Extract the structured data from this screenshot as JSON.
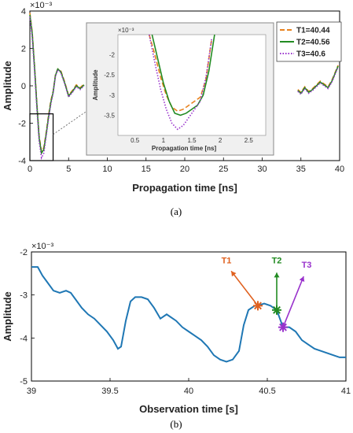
{
  "chart_data": [
    {
      "type": "line",
      "panel": "(a)",
      "caption": "(a)",
      "xlabel": "Propagation time [ns]",
      "ylabel": "Amplitude",
      "exponent_label": "×10⁻³",
      "xlim": [
        0,
        40
      ],
      "ylim": [
        -4,
        4
      ],
      "xticks": [
        "0",
        "5",
        "10",
        "15",
        "20",
        "25",
        "30",
        "35",
        "40"
      ],
      "yticks": [
        "-4",
        "-2",
        "0",
        "2",
        "4"
      ],
      "legend_position": "top-right",
      "colors": {
        "T1": "#e8821e",
        "T2": "#228b22",
        "T3": "#9932cc",
        "base": "#555555",
        "zoom_box": "#000000"
      },
      "series": [
        {
          "name": "T1=40.44",
          "style": "dashed",
          "x": [
            0,
            0.3,
            0.6,
            0.9,
            1.2,
            1.5,
            1.8,
            2.1,
            2.4,
            2.7,
            3.0,
            3.3,
            3.6,
            4.0,
            4.5,
            5.0,
            5.5,
            6.0,
            6.5,
            7.0,
            34.6,
            35.0,
            35.5,
            36.0,
            36.5,
            37.0,
            37.5,
            38.0,
            38.5,
            39.0,
            39.4,
            39.8
          ],
          "y": [
            3.9,
            2.9,
            1.1,
            -0.9,
            -2.7,
            -3.5,
            -3.3,
            -2.5,
            -1.6,
            -0.8,
            -0.3,
            0.6,
            0.9,
            0.8,
            0.2,
            -0.5,
            -0.25,
            0.05,
            -0.1,
            0.1,
            -0.2,
            -0.35,
            -0.05,
            -0.3,
            -0.15,
            0.05,
            0.25,
            0.1,
            -0.05,
            0.3,
            0.7,
            1.1
          ]
        },
        {
          "name": "T2=40.56",
          "style": "solid",
          "x": [
            0,
            0.3,
            0.6,
            0.9,
            1.2,
            1.5,
            1.8,
            2.1,
            2.4,
            2.7,
            3.0,
            3.3,
            3.6,
            4.0,
            4.5,
            5.0,
            5.5,
            6.0,
            6.5,
            7.0,
            34.6,
            35.0,
            35.5,
            36.0,
            36.5,
            37.0,
            37.5,
            38.0,
            38.5,
            39.0,
            39.4,
            39.8
          ],
          "y": [
            3.8,
            2.8,
            1.0,
            -1.0,
            -2.8,
            -3.6,
            -3.4,
            -2.6,
            -1.7,
            -0.9,
            -0.35,
            0.55,
            0.9,
            0.75,
            0.15,
            -0.55,
            -0.3,
            0.0,
            -0.15,
            0.05,
            -0.25,
            -0.4,
            -0.1,
            -0.35,
            -0.2,
            0.0,
            0.2,
            0.05,
            -0.1,
            0.25,
            0.65,
            1.05
          ]
        },
        {
          "name": "T3=40.6",
          "style": "dotted",
          "x": [
            0,
            0.3,
            0.6,
            0.9,
            1.2,
            1.5,
            1.8,
            2.1,
            2.4,
            2.7,
            3.0,
            3.3,
            3.6,
            4.0,
            4.5,
            5.0,
            5.5,
            6.0,
            6.5,
            7.0,
            34.6,
            35.0,
            35.5,
            36.0,
            36.5,
            37.0,
            37.5,
            38.0,
            38.5,
            39.0,
            39.4,
            39.8
          ],
          "y": [
            3.7,
            2.6,
            0.8,
            -1.2,
            -3.0,
            -3.85,
            -3.6,
            -2.7,
            -1.8,
            -1.0,
            -0.4,
            0.5,
            0.85,
            0.7,
            0.1,
            -0.6,
            -0.35,
            -0.05,
            -0.2,
            0.0,
            -0.3,
            -0.45,
            -0.15,
            -0.4,
            -0.25,
            -0.05,
            0.15,
            0.0,
            -0.15,
            0.2,
            0.6,
            1.0
          ]
        }
      ],
      "zoom_box": {
        "xlim": [
          0,
          3
        ],
        "ylim": [
          -4,
          -1.5
        ]
      },
      "inset": {
        "xlabel": "Propagation time [ns]",
        "ylabel": "Amplitude",
        "exponent_label": "×10⁻³",
        "xlim": [
          0.2,
          2.8
        ],
        "ylim": [
          -4,
          -1.5
        ],
        "xticks": [
          "0.5",
          "1",
          "1.5",
          "2",
          "2.5"
        ],
        "yticks": [
          "-2",
          "-2.5",
          "-3",
          "-3.5"
        ],
        "series": [
          {
            "name": "T1=40.44",
            "style": "dashed",
            "x": [
              0.75,
              0.85,
              0.95,
              1.05,
              1.15,
              1.25,
              1.35,
              1.45,
              1.55,
              1.65,
              1.75,
              1.85
            ],
            "y": [
              -1.5,
              -2.0,
              -2.55,
              -3.0,
              -3.3,
              -3.4,
              -3.35,
              -3.25,
              -3.15,
              -3.05,
              -2.6,
              -1.6
            ]
          },
          {
            "name": "T2=40.56",
            "style": "solid",
            "x": [
              0.8,
              0.9,
              1.0,
              1.1,
              1.2,
              1.3,
              1.4,
              1.5,
              1.6,
              1.7,
              1.8,
              1.9
            ],
            "y": [
              -1.5,
              -2.1,
              -2.7,
              -3.15,
              -3.45,
              -3.5,
              -3.45,
              -3.35,
              -3.25,
              -3.0,
              -2.4,
              -1.5
            ]
          },
          {
            "name": "T3=40.6",
            "style": "dotted",
            "x": [
              0.75,
              0.85,
              0.95,
              1.05,
              1.15,
              1.25,
              1.35,
              1.45,
              1.55,
              1.65,
              1.75,
              1.85
            ],
            "y": [
              -1.5,
              -2.2,
              -2.85,
              -3.35,
              -3.7,
              -3.85,
              -3.75,
              -3.55,
              -3.35,
              -3.15,
              -2.55,
              -1.6
            ]
          }
        ]
      }
    },
    {
      "type": "line",
      "panel": "(b)",
      "caption": "(b)",
      "xlabel": "Observation time [s]",
      "ylabel": "Amplitude",
      "exponent_label": "×10⁻³",
      "xlim": [
        39,
        41
      ],
      "ylim": [
        -5,
        -2
      ],
      "xticks": [
        "39",
        "39.5",
        "40",
        "40.5",
        "41"
      ],
      "yticks": [
        "-2",
        "-3",
        "-4",
        "-5"
      ],
      "colors": {
        "line": "#1f77b4",
        "T1": "#e0611f",
        "T2": "#228b22",
        "T3": "#9932cc"
      },
      "series": [
        {
          "name": "",
          "x": [
            39.0,
            39.04,
            39.07,
            39.1,
            39.14,
            39.18,
            39.22,
            39.25,
            39.28,
            39.32,
            39.36,
            39.4,
            39.44,
            39.48,
            39.52,
            39.55,
            39.57,
            39.6,
            39.63,
            39.66,
            39.7,
            39.74,
            39.78,
            39.82,
            39.86,
            39.88,
            39.92,
            39.96,
            40.0,
            40.04,
            40.08,
            40.12,
            40.16,
            40.2,
            40.24,
            40.28,
            40.32,
            40.35,
            40.38,
            40.42,
            40.44,
            40.48,
            40.52,
            40.56,
            40.6,
            40.64,
            40.68,
            40.72,
            40.76,
            40.8,
            40.84,
            40.88,
            40.92,
            40.96,
            41.0
          ],
          "y": [
            -2.35,
            -2.35,
            -2.55,
            -2.7,
            -2.9,
            -2.95,
            -2.9,
            -2.95,
            -3.1,
            -3.3,
            -3.45,
            -3.55,
            -3.7,
            -3.85,
            -4.05,
            -4.25,
            -4.2,
            -3.6,
            -3.15,
            -3.05,
            -3.05,
            -3.1,
            -3.3,
            -3.55,
            -3.45,
            -3.5,
            -3.6,
            -3.75,
            -3.85,
            -3.95,
            -4.05,
            -4.2,
            -4.4,
            -4.5,
            -4.55,
            -4.5,
            -4.3,
            -3.7,
            -3.35,
            -3.25,
            -3.25,
            -3.2,
            -3.25,
            -3.35,
            -3.75,
            -3.75,
            -3.85,
            -4.05,
            -4.15,
            -4.25,
            -4.3,
            -4.35,
            -4.4,
            -4.45,
            -4.45
          ]
        }
      ],
      "markers": [
        {
          "label": "T1",
          "x": 40.44,
          "y": -3.25,
          "label_x": 40.24,
          "label_y": -2.3
        },
        {
          "label": "T2",
          "x": 40.56,
          "y": -3.35,
          "label_x": 40.56,
          "label_y": -2.3
        },
        {
          "label": "T3",
          "x": 40.6,
          "y": -3.75,
          "label_x": 40.75,
          "label_y": -2.4
        }
      ]
    }
  ]
}
